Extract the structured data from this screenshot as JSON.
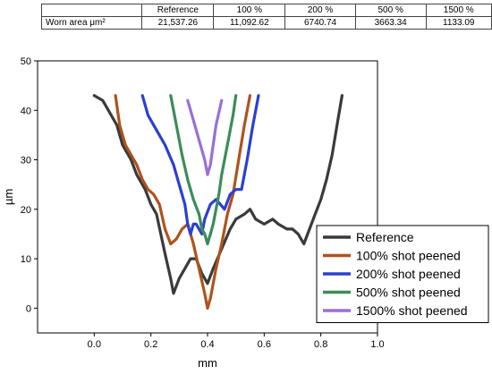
{
  "table": {
    "header": [
      "",
      "Reference",
      "100 %",
      "200 %",
      "500 %",
      "1500 %"
    ],
    "row": [
      "Worn area μm²",
      "21,537.26",
      "11,092.62",
      "6740.74",
      "3663.34",
      "1133.09"
    ]
  },
  "chart_data": {
    "type": "line",
    "xlabel": "mm",
    "ylabel": "µm",
    "xlim": [
      -0.2,
      1.0
    ],
    "ylim": [
      -5,
      50
    ],
    "xticks": [
      "0.0",
      "0.2",
      "0.4",
      "0.6",
      "0.8",
      "1.0"
    ],
    "yticks": [
      "0",
      "10",
      "20",
      "30",
      "40",
      "50"
    ],
    "legend_position": "bottom-right",
    "series": [
      {
        "name": "Reference",
        "color": "#3a3a3a",
        "points": [
          [
            0.0,
            43
          ],
          [
            0.03,
            42
          ],
          [
            0.05,
            40
          ],
          [
            0.08,
            37
          ],
          [
            0.1,
            33
          ],
          [
            0.13,
            30
          ],
          [
            0.15,
            27
          ],
          [
            0.18,
            24
          ],
          [
            0.2,
            21
          ],
          [
            0.22,
            19
          ],
          [
            0.25,
            11
          ],
          [
            0.27,
            6
          ],
          [
            0.28,
            3
          ],
          [
            0.3,
            6
          ],
          [
            0.32,
            8
          ],
          [
            0.34,
            10
          ],
          [
            0.36,
            10
          ],
          [
            0.38,
            7
          ],
          [
            0.4,
            5
          ],
          [
            0.42,
            8
          ],
          [
            0.45,
            12
          ],
          [
            0.48,
            16
          ],
          [
            0.5,
            18
          ],
          [
            0.53,
            19
          ],
          [
            0.55,
            20
          ],
          [
            0.57,
            18
          ],
          [
            0.6,
            17
          ],
          [
            0.63,
            18
          ],
          [
            0.65,
            17
          ],
          [
            0.68,
            16
          ],
          [
            0.7,
            16
          ],
          [
            0.72,
            15
          ],
          [
            0.74,
            13
          ],
          [
            0.76,
            16
          ],
          [
            0.78,
            19
          ],
          [
            0.8,
            22
          ],
          [
            0.82,
            26
          ],
          [
            0.84,
            31
          ],
          [
            0.86,
            38
          ],
          [
            0.875,
            43
          ]
        ]
      },
      {
        "name": "100% shot peened",
        "color": "#b0521e",
        "points": [
          [
            0.075,
            43
          ],
          [
            0.09,
            37
          ],
          [
            0.11,
            33
          ],
          [
            0.13,
            31
          ],
          [
            0.15,
            29
          ],
          [
            0.17,
            26
          ],
          [
            0.19,
            24
          ],
          [
            0.21,
            23
          ],
          [
            0.23,
            21
          ],
          [
            0.25,
            16
          ],
          [
            0.27,
            13
          ],
          [
            0.29,
            14
          ],
          [
            0.31,
            16
          ],
          [
            0.33,
            17
          ],
          [
            0.35,
            13
          ],
          [
            0.37,
            8
          ],
          [
            0.39,
            3
          ],
          [
            0.4,
            0
          ],
          [
            0.41,
            2
          ],
          [
            0.43,
            8
          ],
          [
            0.45,
            13
          ],
          [
            0.47,
            19
          ],
          [
            0.49,
            23
          ],
          [
            0.51,
            30
          ],
          [
            0.53,
            37
          ],
          [
            0.55,
            43
          ]
        ]
      },
      {
        "name": "200% shot peened",
        "color": "#2a40d0",
        "points": [
          [
            0.17,
            43
          ],
          [
            0.19,
            39
          ],
          [
            0.22,
            36
          ],
          [
            0.25,
            33
          ],
          [
            0.28,
            29
          ],
          [
            0.3,
            25
          ],
          [
            0.32,
            21
          ],
          [
            0.33,
            17
          ],
          [
            0.34,
            15
          ],
          [
            0.35,
            17
          ],
          [
            0.36,
            17
          ],
          [
            0.38,
            15
          ],
          [
            0.39,
            18
          ],
          [
            0.41,
            21
          ],
          [
            0.43,
            22
          ],
          [
            0.46,
            20
          ],
          [
            0.48,
            23
          ],
          [
            0.5,
            24
          ],
          [
            0.52,
            24
          ],
          [
            0.54,
            30
          ],
          [
            0.56,
            37
          ],
          [
            0.58,
            43
          ]
        ]
      },
      {
        "name": "500% shot peened",
        "color": "#3b8c5a",
        "points": [
          [
            0.27,
            43
          ],
          [
            0.29,
            37
          ],
          [
            0.31,
            31
          ],
          [
            0.33,
            26
          ],
          [
            0.35,
            22
          ],
          [
            0.37,
            19
          ],
          [
            0.38,
            16
          ],
          [
            0.39,
            15
          ],
          [
            0.4,
            13
          ],
          [
            0.41,
            15
          ],
          [
            0.42,
            17
          ],
          [
            0.43,
            20
          ],
          [
            0.44,
            23
          ],
          [
            0.45,
            27
          ],
          [
            0.47,
            33
          ],
          [
            0.49,
            39
          ],
          [
            0.5,
            43
          ]
        ]
      },
      {
        "name": "1500% shot peened",
        "color": "#9b6fd6",
        "points": [
          [
            0.33,
            42
          ],
          [
            0.35,
            38
          ],
          [
            0.37,
            34
          ],
          [
            0.39,
            30
          ],
          [
            0.4,
            27
          ],
          [
            0.41,
            29
          ],
          [
            0.42,
            33
          ],
          [
            0.43,
            37
          ],
          [
            0.45,
            42
          ]
        ]
      }
    ]
  }
}
